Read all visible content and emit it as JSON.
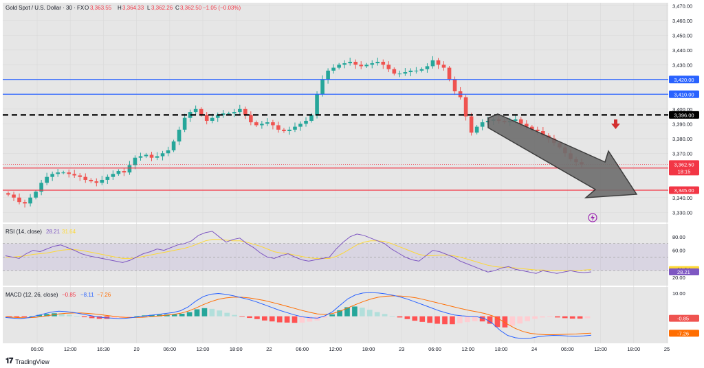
{
  "header": {
    "symbol": "Gold Spot / U.S. Dollar · 30 · FX",
    "o_label": "O",
    "o_value": "3,363.55",
    "h_label": "H",
    "h_value": "3,364.33",
    "l_label": "L",
    "l_value": "3,362.26",
    "c_label": "C",
    "c_value": "3,362.50",
    "change": "−1.05 (−0.03%)"
  },
  "brand": {
    "name": "TradingView"
  },
  "colors": {
    "bg": "#e6e6e6",
    "up": "#26a69a",
    "down": "#ef5350",
    "blue_level": "#2962ff",
    "red_level": "#f23645",
    "black_level": "#000000",
    "rsi_line": "#7e57c2",
    "rsi_ma": "#fdd835",
    "macd_line": "#2962ff",
    "signal_line": "#ff6d00"
  },
  "chart_data": [
    {
      "type": "candlestick",
      "title": "Gold Spot / U.S. Dollar · 30 · FX",
      "ylim": [
        3325,
        3472
      ],
      "y_ticks": [
        "3,470.00",
        "3,460.00",
        "3,450.00",
        "3,440.00",
        "3,430.00",
        "3,400.00",
        "3,390.00",
        "3,380.00",
        "3,370.00",
        "3,340.00",
        "3,330.00"
      ],
      "x_ticks": [
        "06:00",
        "12:00",
        "16:30",
        "20",
        "06:00",
        "12:00",
        "18:00",
        "22",
        "06:00",
        "12:00",
        "18:00",
        "23",
        "06:00",
        "12:00",
        "18:00",
        "24",
        "06:00",
        "12:00",
        "18:00",
        "25"
      ],
      "close": [
        3342,
        3340,
        3337,
        3336,
        3340,
        3344,
        3350,
        3354,
        3356,
        3357,
        3357,
        3356,
        3355,
        3354,
        3352,
        3351,
        3350,
        3352,
        3354,
        3356,
        3358,
        3357,
        3362,
        3367,
        3368,
        3369,
        3367,
        3368,
        3370,
        3372,
        3378,
        3386,
        3394,
        3398,
        3400,
        3396,
        3392,
        3394,
        3396,
        3397,
        3397,
        3398,
        3400,
        3396,
        3391,
        3389,
        3390,
        3391,
        3389,
        3386,
        3385,
        3386,
        3388,
        3390,
        3392,
        3396,
        3410,
        3420,
        3426,
        3428,
        3430,
        3431,
        3432,
        3430,
        3429,
        3430,
        3431,
        3432,
        3430,
        3427,
        3424,
        3424,
        3425,
        3426,
        3426,
        3427,
        3429,
        3433,
        3430,
        3428,
        3420,
        3412,
        3408,
        3395,
        3384,
        3388,
        3391,
        3392,
        3393,
        3392,
        3391,
        3392,
        3393,
        3390,
        3388,
        3386,
        3385,
        3382,
        3380,
        3377,
        3374,
        3370,
        3366,
        3364,
        3362.5
      ],
      "levels": [
        {
          "value": 3420.0,
          "label": "3,420.00",
          "color": "blue"
        },
        {
          "value": 3410.0,
          "label": "3,410.00",
          "color": "blue"
        },
        {
          "value": 3396.0,
          "label": "3,396.00",
          "color": "black-dashed"
        },
        {
          "value": 3360.0,
          "label": "3,360.00",
          "color": "red"
        },
        {
          "value": 3345.0,
          "label": "3,345.00",
          "color": "red"
        }
      ],
      "last_price": {
        "value": 3362.5,
        "label": "3,362.50",
        "countdown": "18:15"
      }
    },
    {
      "type": "line",
      "title": "RSI (14, close)",
      "legend_values": [
        "28.21",
        "31.64"
      ],
      "y_ticks": [
        "80.00",
        "60.00",
        "20.00"
      ],
      "ylim": [
        10,
        95
      ],
      "band": [
        30,
        70
      ],
      "series": [
        {
          "values": [
            52,
            50,
            48,
            55,
            60,
            58,
            62,
            66,
            68,
            64,
            60,
            55,
            52,
            50,
            48,
            46,
            44,
            42,
            45,
            50,
            55,
            58,
            62,
            60,
            64,
            68,
            70,
            74,
            82,
            86,
            88,
            80,
            72,
            76,
            78,
            70,
            64,
            56,
            50,
            48,
            52,
            55,
            50,
            46,
            44,
            46,
            48,
            50,
            62,
            72,
            80,
            84,
            82,
            78,
            74,
            70,
            62,
            56,
            50,
            46,
            44,
            52,
            60,
            58,
            54,
            50,
            44,
            40,
            36,
            32,
            28,
            30,
            34,
            36,
            32,
            30,
            28,
            26,
            30,
            28,
            26,
            28,
            30,
            28,
            27,
            28.21
          ]
        },
        {
          "values": [
            50,
            50,
            51,
            52,
            54,
            55,
            56,
            58,
            60,
            61,
            61,
            60,
            58,
            56,
            54,
            52,
            50,
            48,
            48,
            49,
            51,
            53,
            55,
            57,
            59,
            61,
            63,
            66,
            70,
            74,
            76,
            76,
            75,
            74,
            74,
            72,
            69,
            66,
            62,
            58,
            56,
            55,
            53,
            51,
            49,
            48,
            48,
            48,
            51,
            56,
            62,
            68,
            72,
            74,
            74,
            73,
            70,
            66,
            62,
            58,
            54,
            52,
            52,
            53,
            53,
            52,
            50,
            47,
            44,
            41,
            38,
            36,
            35,
            35,
            34,
            33,
            32,
            31,
            31,
            30,
            30,
            30,
            30,
            30,
            31,
            31.64
          ]
        }
      ]
    },
    {
      "type": "line",
      "title": "MACD (12, 26, close)",
      "legend_values": [
        "−0.85",
        "−8.11",
        "−7.26"
      ],
      "y_ticks": [
        "10.00"
      ],
      "value_labels": [
        "-0.85",
        "-7.26"
      ],
      "ylim": [
        -11,
        12
      ],
      "series": [
        {
          "values": [
            -0.5,
            -0.8,
            -1.0,
            -0.6,
            0.2,
            1.0,
            1.8,
            2.2,
            2.0,
            1.6,
            1.0,
            0.4,
            -0.2,
            -0.6,
            -0.8,
            -1.0,
            -0.8,
            -0.4,
            0.0,
            0.4,
            0.8,
            1.2,
            1.6,
            2.4,
            4.0,
            6.5,
            8.5,
            9.5,
            9.8,
            9.4,
            8.8,
            8.0,
            7.2,
            6.2,
            5.0,
            3.8,
            2.6,
            1.6,
            0.6,
            -0.2,
            -0.6,
            -0.8,
            0.2,
            2.0,
            4.8,
            7.5,
            9.2,
            10.0,
            10.2,
            10.0,
            9.6,
            9.0,
            8.2,
            7.2,
            6.0,
            4.8,
            3.6,
            2.4,
            1.4,
            0.6,
            0.2,
            0.0,
            -0.2,
            -1.0,
            -3.0,
            -6.0,
            -8.2,
            -9.2,
            -9.6,
            -9.4,
            -8.8,
            -8.4,
            -8.2,
            -8.3,
            -8.5,
            -8.6,
            -8.4,
            -8.11
          ]
        },
        {
          "values": [
            -0.2,
            -0.4,
            -0.6,
            -0.6,
            -0.4,
            0.0,
            0.5,
            1.0,
            1.3,
            1.4,
            1.4,
            1.2,
            0.9,
            0.5,
            0.1,
            -0.3,
            -0.5,
            -0.5,
            -0.4,
            -0.2,
            0.1,
            0.4,
            0.8,
            1.3,
            2.2,
            3.5,
            5.0,
            6.3,
            7.3,
            7.9,
            8.2,
            8.2,
            7.9,
            7.4,
            6.8,
            6.0,
            5.2,
            4.3,
            3.4,
            2.5,
            1.7,
            1.0,
            0.8,
            1.2,
            2.2,
            3.6,
            5.0,
            6.3,
            7.4,
            8.2,
            8.6,
            8.8,
            8.7,
            8.4,
            7.9,
            7.2,
            6.4,
            5.6,
            4.8,
            4.0,
            3.2,
            2.5,
            1.9,
            1.2,
            0.2,
            -1.4,
            -3.4,
            -5.2,
            -6.5,
            -7.3,
            -7.7,
            -7.9,
            -7.9,
            -7.8,
            -7.7,
            -7.6,
            -7.4,
            -7.26
          ]
        }
      ]
    }
  ]
}
